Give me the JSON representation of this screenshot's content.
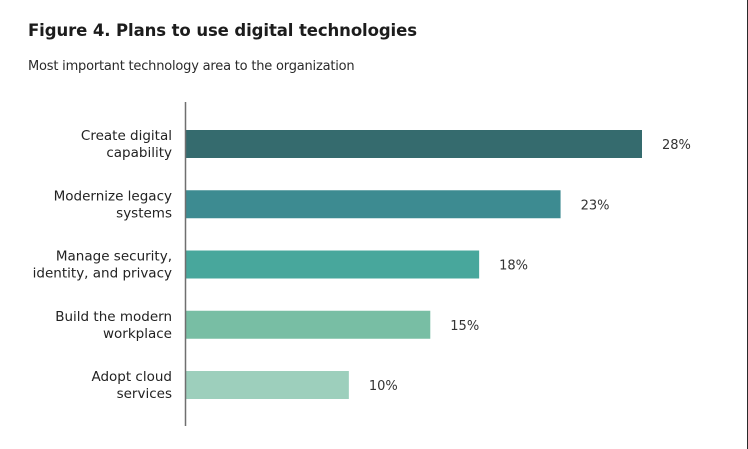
{
  "chart_data": {
    "type": "bar",
    "orientation": "horizontal",
    "title": "Figure 4. Plans to use digital technologies",
    "subtitle": "Most important technology area to the organization",
    "xlabel": "",
    "ylabel": "",
    "xlim": [
      0,
      28
    ],
    "grid": false,
    "legend": "none",
    "categories": [
      [
        "Create digital",
        "capability"
      ],
      [
        "Modernize legacy",
        "systems"
      ],
      [
        "Manage security,",
        "identity, and privacy"
      ],
      [
        "Build the modern",
        "workplace"
      ],
      [
        "Adopt cloud",
        "services"
      ]
    ],
    "values": [
      28,
      23,
      18,
      15,
      10
    ],
    "value_labels": [
      "28%",
      "23%",
      "18%",
      "15%",
      "10%"
    ],
    "colors": [
      "#356b6e",
      "#3d8b91",
      "#48a79c",
      "#78bea4",
      "#9dcfbc"
    ]
  }
}
